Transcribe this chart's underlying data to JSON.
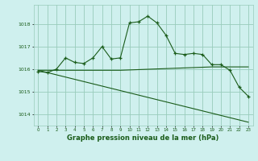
{
  "title": "Graphe pression niveau de la mer (hPa)",
  "background_color": "#cff0ee",
  "grid_color": "#99ccbb",
  "line_color": "#1a5c1a",
  "xlim": [
    -0.5,
    23.5
  ],
  "ylim": [
    1013.5,
    1018.85
  ],
  "yticks": [
    1014,
    1015,
    1016,
    1017,
    1018
  ],
  "xticks": [
    0,
    1,
    2,
    3,
    4,
    5,
    6,
    7,
    8,
    9,
    10,
    11,
    12,
    13,
    14,
    15,
    16,
    17,
    18,
    19,
    20,
    21,
    22,
    23
  ],
  "series1": {
    "x": [
      0,
      1,
      2,
      3,
      4,
      5,
      6,
      7,
      8,
      9,
      10,
      11,
      12,
      13,
      14,
      15,
      16,
      17,
      18,
      19,
      20,
      21,
      22,
      23
    ],
    "y": [
      1015.9,
      1015.85,
      1016.0,
      1016.5,
      1016.3,
      1016.25,
      1016.5,
      1017.0,
      1016.45,
      1016.5,
      1018.05,
      1018.1,
      1018.35,
      1018.05,
      1017.5,
      1016.7,
      1016.65,
      1016.7,
      1016.65,
      1016.2,
      1016.2,
      1015.95,
      1015.2,
      1014.8
    ]
  },
  "series2": {
    "x": [
      0,
      9,
      19,
      23
    ],
    "y": [
      1015.95,
      1015.95,
      1016.1,
      1016.1
    ]
  },
  "series3": {
    "x": [
      0,
      23
    ],
    "y": [
      1015.95,
      1013.65
    ]
  }
}
